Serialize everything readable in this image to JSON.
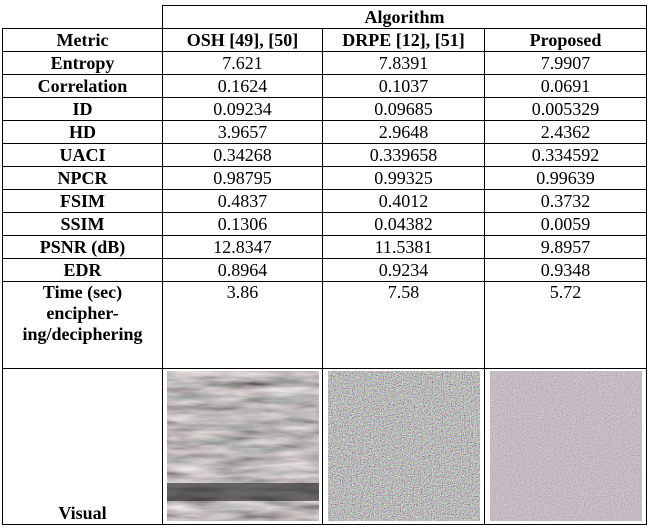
{
  "header": {
    "group": "Algorithm",
    "columns": [
      "Metric",
      "OSH [49], [50]",
      "DRPE [12], [51]",
      "Proposed"
    ]
  },
  "rows": [
    [
      "Entropy",
      "7.621",
      "7.8391",
      "7.9907"
    ],
    [
      "Correlation",
      "0.1624",
      "0.1037",
      "0.0691"
    ],
    [
      "ID",
      "0.09234",
      "0.09685",
      "0.005329"
    ],
    [
      "HD",
      "3.9657",
      "2.9648",
      "2.4362"
    ],
    [
      "UACI",
      "0.34268",
      "0.339658",
      "0.334592"
    ],
    [
      "NPCR",
      "0.98795",
      "0.99325",
      "0.99639"
    ],
    [
      "FSIM",
      "0.4837",
      "0.4012",
      "0.3732"
    ],
    [
      "SSIM",
      "0.1306",
      "0.04382",
      "0.0059"
    ],
    [
      "PSNR (dB)",
      "12.8347",
      "11.5381",
      "9.8957"
    ],
    [
      "EDR",
      "0.8964",
      "0.9234",
      "0.9348"
    ]
  ],
  "time_row": {
    "label": [
      "Time (sec)",
      "encipher-",
      "ing/deciphering"
    ],
    "values": [
      "3.86",
      "7.58",
      "5.72"
    ]
  },
  "visual_row": {
    "label": "Visual"
  }
}
